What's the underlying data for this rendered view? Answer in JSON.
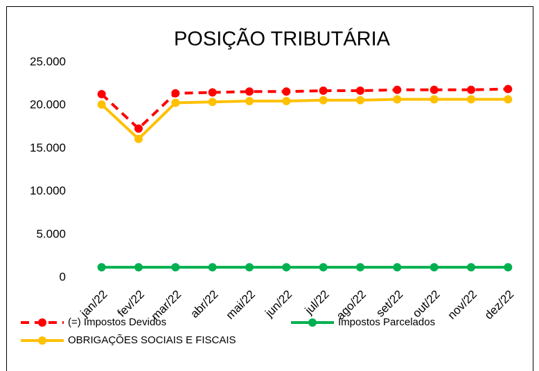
{
  "chart_data": {
    "type": "line",
    "title": "POSIÇÃO TRIBUTÁRIA",
    "categories": [
      "jan/22",
      "fev/22",
      "mar/22",
      "abr/22",
      "mai/22",
      "jun/22",
      "jul/22",
      "ago/22",
      "set/22",
      "out/22",
      "nov/22",
      "dez/22"
    ],
    "series": [
      {
        "name": "(=) Impostos Devidos",
        "color": "#ff0000",
        "dashed": true,
        "values": [
          21300,
          17300,
          21400,
          21500,
          21600,
          21600,
          21700,
          21700,
          21800,
          21800,
          21800,
          21900
        ]
      },
      {
        "name": "Impostos Parcelados",
        "color": "#00b050",
        "values": [
          1200,
          1200,
          1200,
          1200,
          1200,
          1200,
          1200,
          1200,
          1200,
          1200,
          1200,
          1200
        ]
      },
      {
        "name": "OBRIGAÇÕES SOCIAIS E FISCAIS",
        "color": "#ffc000",
        "values": [
          20100,
          16100,
          20300,
          20400,
          20500,
          20500,
          20600,
          20600,
          20700,
          20700,
          20700,
          20700
        ]
      }
    ],
    "ylim": [
      0,
      25000
    ],
    "yticks": [
      0,
      {
        "value": 5000,
        "label": "5.000"
      },
      {
        "value": 10000,
        "label": "10.000"
      },
      {
        "value": 15000,
        "label": "15.000"
      },
      {
        "value": 20000,
        "label": "20.000"
      },
      {
        "value": 25000,
        "label": "25.000"
      }
    ],
    "grid": false,
    "legend": "bottom"
  }
}
